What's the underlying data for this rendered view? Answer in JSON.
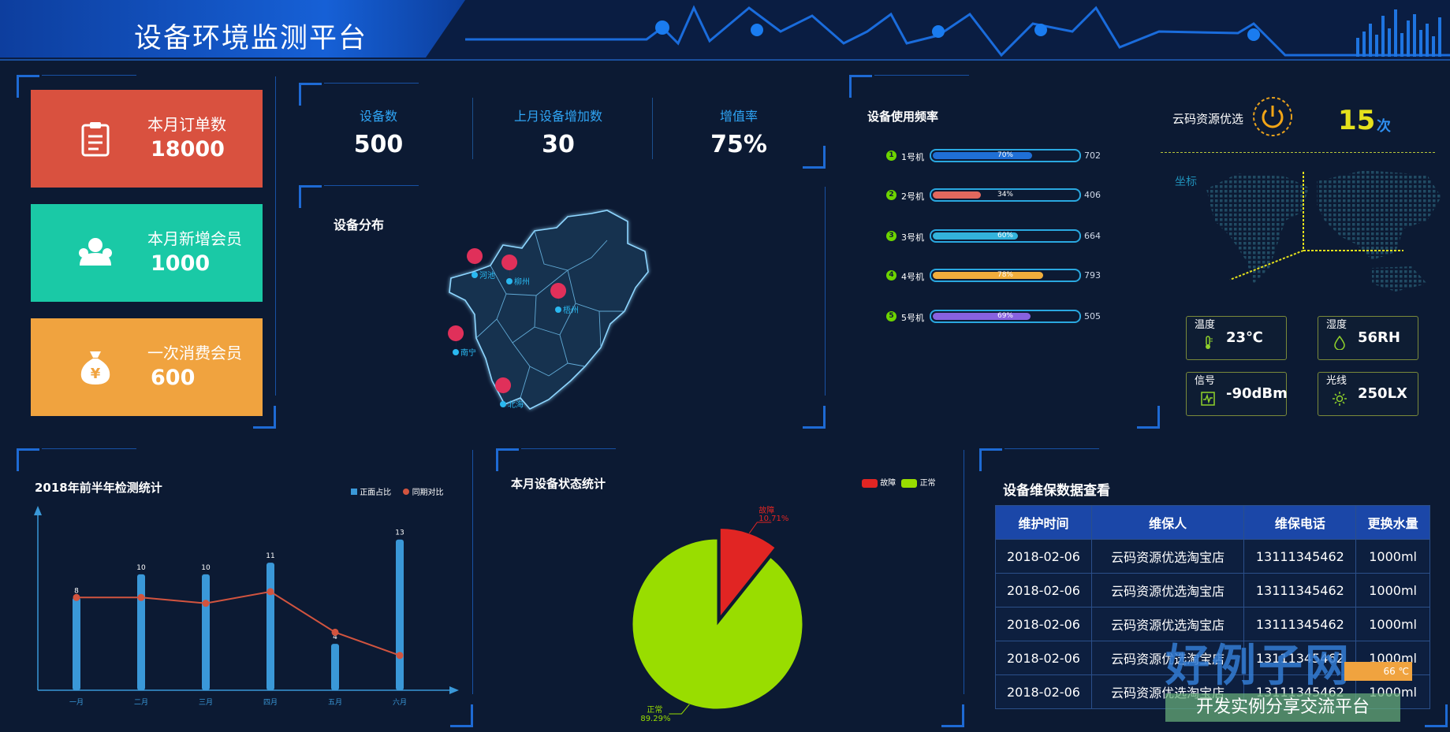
{
  "app_title": "设备环境监测平台",
  "stat_cards": [
    {
      "label": "本月订单数",
      "value": "18000",
      "color": "#d9513f",
      "icon": "clipboard-icon"
    },
    {
      "label": "本月新增会员",
      "value": "1000",
      "color": "#1ac9a6",
      "icon": "users-icon"
    },
    {
      "label": "一次消费会员",
      "value": "600",
      "color": "#f0a33f",
      "icon": "money-bag-icon"
    }
  ],
  "kpis": [
    {
      "label": "设备数",
      "value": "500"
    },
    {
      "label": "上月设备增加数",
      "value": "30"
    },
    {
      "label": "增值率",
      "value": "75%"
    }
  ],
  "map_panel": {
    "title": "设备分布",
    "cities": [
      "河池",
      "柳州",
      "梧州",
      "南宁",
      "北海"
    ]
  },
  "usage_panel": {
    "title": "设备使用频率",
    "rows": [
      {
        "rank": "1",
        "name": "1号机",
        "pct_label": "70%",
        "pct": 70,
        "count": "702",
        "color": "#1f6fd6"
      },
      {
        "rank": "2",
        "name": "2号机",
        "pct_label": "34%",
        "pct": 34,
        "count": "406",
        "color": "#e2685e"
      },
      {
        "rank": "3",
        "name": "3号机",
        "pct_label": "60%",
        "pct": 60,
        "count": "664",
        "color": "#33b3dc"
      },
      {
        "rank": "4",
        "name": "4号机",
        "pct_label": "78%",
        "pct": 78,
        "count": "793",
        "color": "#f0ad3c"
      },
      {
        "rank": "5",
        "name": "5号机",
        "pct_label": "69%",
        "pct": 69,
        "count": "505",
        "color": "#8862e0"
      }
    ]
  },
  "resource_panel": {
    "label": "云码资源优选",
    "count": "15",
    "unit": "次",
    "coord_label": "坐标"
  },
  "sensors": [
    {
      "label": "温度",
      "value": "23℃",
      "icon": "thermometer-icon"
    },
    {
      "label": "湿度",
      "value": "56RH",
      "icon": "droplet-icon"
    },
    {
      "label": "信号",
      "value": "-90dBm",
      "icon": "signal-icon"
    },
    {
      "label": "光线",
      "value": "250LX",
      "icon": "sun-icon"
    }
  ],
  "detection_chart": {
    "title": "2018年前半年检测统计",
    "legend": [
      "正面占比",
      "同期对比"
    ]
  },
  "status_chart": {
    "title": "本月设备状态统计",
    "legend": [
      "故障",
      "正常"
    ],
    "fault_label": "故障",
    "fault_pct": "10.71%",
    "normal_label": "正常",
    "normal_pct": "89.29%"
  },
  "maintenance": {
    "title": "设备维保数据查看",
    "columns": [
      "维护时间",
      "维保人",
      "维保电话",
      "更换水量"
    ],
    "rows": [
      [
        "2018-02-06",
        "云码资源优选淘宝店",
        "13111345462",
        "1000ml"
      ],
      [
        "2018-02-06",
        "云码资源优选淘宝店",
        "13111345462",
        "1000ml"
      ],
      [
        "2018-02-06",
        "云码资源优选淘宝店",
        "13111345462",
        "1000ml"
      ],
      [
        "2018-02-06",
        "云码资源优选淘宝店",
        "13111345462",
        "1000ml"
      ],
      [
        "2018-02-06",
        "云码资源优选淘宝店",
        "13111345462",
        "1000ml"
      ]
    ]
  },
  "watermark": {
    "logo": "好例子网",
    "slogan": "开发实例分享交流平台",
    "tag": "66 ℃"
  },
  "chart_data": [
    {
      "type": "bar",
      "categories": [
        "一月",
        "二月",
        "三月",
        "四月",
        "五月",
        "六月"
      ],
      "series": [
        {
          "name": "正面占比",
          "values": [
            8,
            10,
            10,
            11,
            4,
            13
          ]
        },
        {
          "name": "同期对比",
          "values": [
            8,
            8,
            7.5,
            8.5,
            5,
            3
          ]
        }
      ],
      "ylim": [
        0,
        14
      ],
      "colors": [
        "#3a98d8",
        "#d2543f"
      ]
    },
    {
      "type": "pie",
      "categories": [
        "故障",
        "正常"
      ],
      "values": [
        10.71,
        89.29
      ],
      "colors": [
        "#e12523",
        "#99dd00"
      ]
    }
  ]
}
